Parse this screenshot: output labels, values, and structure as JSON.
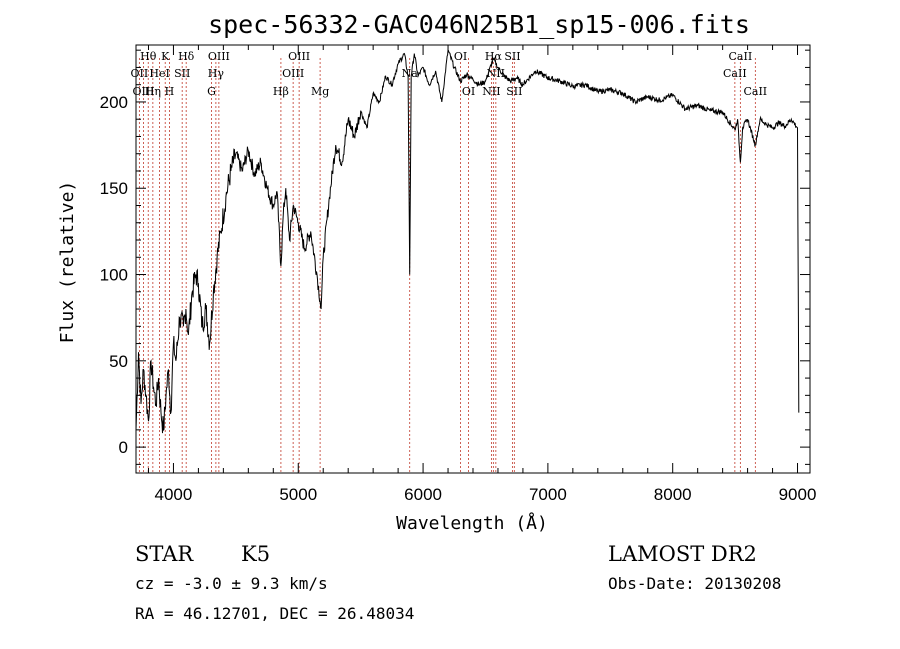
{
  "chart_data": {
    "type": "line",
    "title": "spec-56332-GAC046N25B1_sp15-006.fits",
    "xlabel": "Wavelength (Å)",
    "ylabel": "Flux (relative)",
    "xlim": [
      3700,
      9100
    ],
    "ylim": [
      -15,
      233
    ],
    "xticks": [
      4000,
      5000,
      6000,
      7000,
      8000,
      9000
    ],
    "yticks": [
      0,
      50,
      100,
      150,
      200
    ],
    "series": [
      {
        "name": "spectrum",
        "x": [
          3700,
          3720,
          3740,
          3760,
          3780,
          3800,
          3820,
          3840,
          3860,
          3880,
          3900,
          3920,
          3940,
          3960,
          3980,
          4000,
          4020,
          4050,
          4080,
          4100,
          4120,
          4150,
          4180,
          4200,
          4230,
          4260,
          4290,
          4320,
          4350,
          4380,
          4420,
          4460,
          4500,
          4550,
          4600,
          4650,
          4700,
          4750,
          4800,
          4830,
          4861,
          4880,
          4900,
          4930,
          4960,
          5000,
          5050,
          5100,
          5150,
          5175,
          5183,
          5200,
          5250,
          5300,
          5350,
          5400,
          5450,
          5500,
          5550,
          5600,
          5650,
          5700,
          5750,
          5800,
          5850,
          5880,
          5893,
          5905,
          5930,
          5960,
          6000,
          6050,
          6100,
          6150,
          6200,
          6250,
          6300,
          6350,
          6400,
          6450,
          6500,
          6563,
          6600,
          6650,
          6700,
          6750,
          6800,
          6900,
          7000,
          7100,
          7200,
          7300,
          7400,
          7500,
          7600,
          7700,
          7800,
          7900,
          8000,
          8100,
          8200,
          8300,
          8400,
          8498,
          8520,
          8542,
          8560,
          8600,
          8662,
          8700,
          8750,
          8800,
          8850,
          8900,
          8950,
          9000,
          9010
        ],
        "values": [
          10,
          55,
          25,
          45,
          30,
          15,
          50,
          35,
          25,
          40,
          20,
          10,
          30,
          45,
          20,
          60,
          50,
          75,
          70,
          80,
          65,
          90,
          100,
          95,
          70,
          80,
          60,
          90,
          110,
          125,
          145,
          160,
          170,
          160,
          172,
          158,
          165,
          150,
          140,
          148,
          105,
          135,
          150,
          120,
          140,
          130,
          115,
          125,
          100,
          85,
          80,
          110,
          145,
          175,
          165,
          190,
          180,
          195,
          185,
          205,
          200,
          215,
          210,
          222,
          228,
          215,
          100,
          215,
          228,
          215,
          220,
          210,
          218,
          200,
          230,
          220,
          212,
          216,
          213,
          210,
          212,
          225,
          220,
          215,
          212,
          214,
          210,
          218,
          214,
          212,
          209,
          210,
          206,
          207,
          205,
          200,
          203,
          201,
          204,
          196,
          198,
          195,
          194,
          184,
          190,
          165,
          185,
          190,
          175,
          190,
          187,
          185,
          188,
          186,
          190,
          185,
          20
        ]
      }
    ],
    "lines": [
      {
        "label": "Hθ",
        "x": 3798,
        "row": 1
      },
      {
        "label": "OII",
        "x": 3727,
        "row": 2
      },
      {
        "label": "OIII",
        "x": 3760,
        "row": 3
      },
      {
        "label": "Hη",
        "x": 3835,
        "row": 3
      },
      {
        "label": "HeI",
        "x": 3889,
        "row": 2
      },
      {
        "label": "K",
        "x": 3934,
        "row": 1
      },
      {
        "label": "H",
        "x": 3968,
        "row": 3
      },
      {
        "label": "SII",
        "x": 4070,
        "row": 2
      },
      {
        "label": "Hδ",
        "x": 4102,
        "row": 1
      },
      {
        "label": "G",
        "x": 4305,
        "row": 3
      },
      {
        "label": "Hγ",
        "x": 4340,
        "row": 2
      },
      {
        "label": "OIII",
        "x": 4364,
        "row": 1
      },
      {
        "label": "Hβ",
        "x": 4861,
        "row": 3
      },
      {
        "label": "OIII",
        "x": 4959,
        "row": 2
      },
      {
        "label": "OIII",
        "x": 5007,
        "row": 1
      },
      {
        "label": "Mg",
        "x": 5175,
        "row": 3
      },
      {
        "label": "Na",
        "x": 5893,
        "row": 2
      },
      {
        "label": "OI",
        "x": 6300,
        "row": 1
      },
      {
        "label": "OI",
        "x": 6364,
        "row": 3
      },
      {
        "label": "NII",
        "x": 6548,
        "row": 3
      },
      {
        "label": "Hα",
        "x": 6563,
        "row": 1
      },
      {
        "label": "NII",
        "x": 6583,
        "row": 2
      },
      {
        "label": "SII",
        "x": 6716,
        "row": 1
      },
      {
        "label": "SII",
        "x": 6731,
        "row": 3
      },
      {
        "label": "CaII",
        "x": 8498,
        "row": 2
      },
      {
        "label": "CaII",
        "x": 8542,
        "row": 1
      },
      {
        "label": "CaII",
        "x": 8662,
        "row": 3
      }
    ]
  },
  "info": {
    "object_type": "STAR",
    "subclass": "K5",
    "survey": "LAMOST DR2",
    "redshift": "cz = -3.0 ± 9.3 km/s",
    "obs_date": "Obs-Date: 20130208",
    "coords": "RA =  46.12701, DEC =  26.48034"
  }
}
